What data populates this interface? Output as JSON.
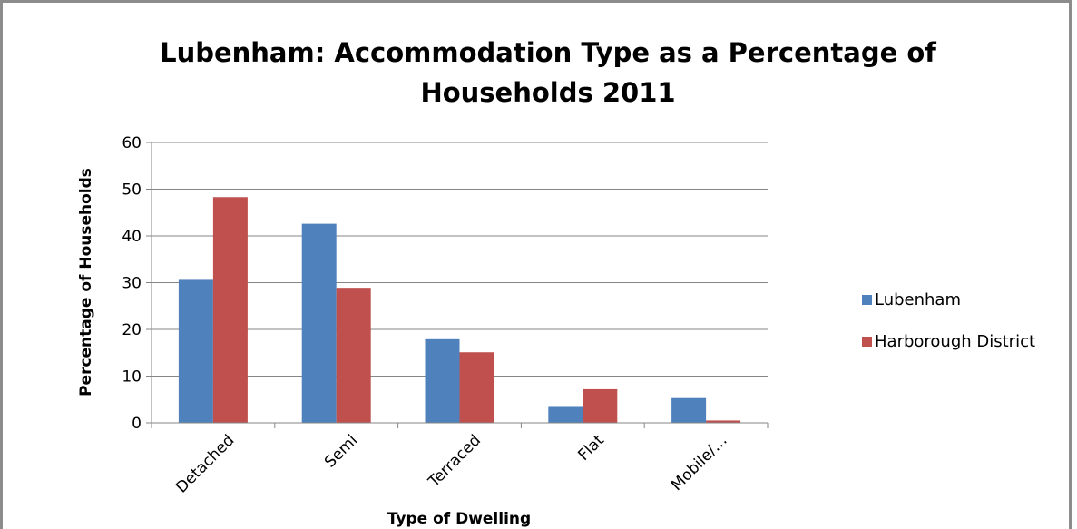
{
  "chart_data": {
    "type": "bar",
    "title_lines": [
      "Lubenham: Accommodation Type as a Percentage of",
      "Households 2011"
    ],
    "xlabel": "Type of Dwelling",
    "ylabel": "Percentage of Households",
    "categories": [
      "Detached",
      "Semi",
      "Terraced",
      "Flat",
      "Mobile/…"
    ],
    "ylim": [
      0,
      60
    ],
    "yticks": [
      0,
      10,
      20,
      30,
      40,
      50,
      60
    ],
    "grid": true,
    "legend_position": "right",
    "series": [
      {
        "name": "Lubenham",
        "color": "#4f81bd",
        "values": [
          30.6,
          42.6,
          17.9,
          3.6,
          5.3
        ]
      },
      {
        "name": "Harborough District",
        "color": "#c0504d",
        "values": [
          48.3,
          28.9,
          15.1,
          7.2,
          0.5
        ]
      }
    ]
  }
}
